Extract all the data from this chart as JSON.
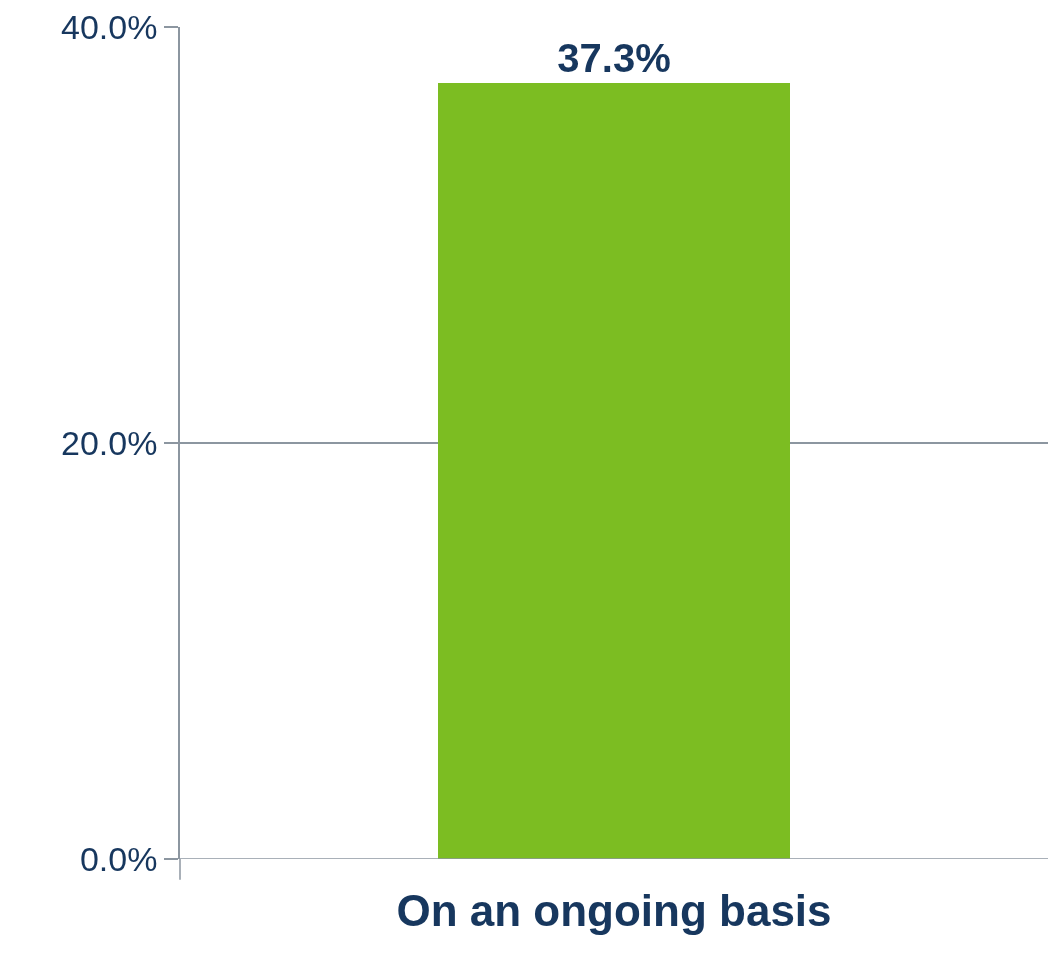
{
  "chart_data": {
    "type": "bar",
    "categories": [
      "On an ongoing basis"
    ],
    "values": [
      37.3
    ],
    "color": "#7cbd22",
    "value_labels": [
      "37.3%"
    ],
    "ylim": [
      0,
      40
    ],
    "yticks": [
      {
        "value": 0,
        "label": "0.0%"
      },
      {
        "value": 20,
        "label": "20.0%"
      },
      {
        "value": 40,
        "label": "40.0%"
      }
    ],
    "grid": "y"
  }
}
